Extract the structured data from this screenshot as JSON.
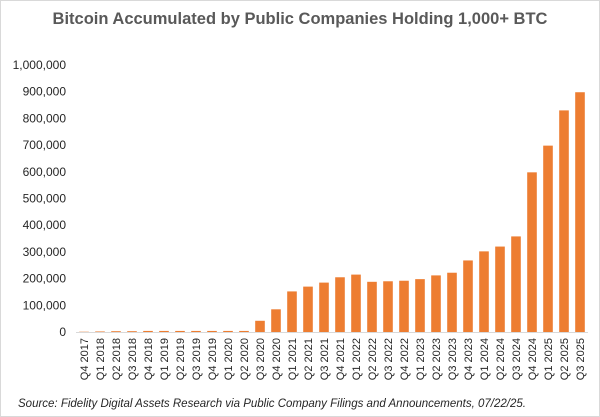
{
  "chart_data": {
    "type": "bar",
    "title": "Bitcoin Accumulated by Public Companies Holding 1,000+ BTC",
    "xlabel": "",
    "ylabel": "",
    "ylim": [
      0,
      1000000
    ],
    "yticks": [
      "0",
      "100,000",
      "200,000",
      "300,000",
      "400,000",
      "500,000",
      "600,000",
      "700,000",
      "800,000",
      "900,000",
      "1,000,000"
    ],
    "grid": false,
    "legend": "none",
    "bar_color": "#ed7d31",
    "categories": [
      "Q4 2017",
      "Q1 2018",
      "Q2 2018",
      "Q3 2018",
      "Q4 2018",
      "Q1 2019",
      "Q2 2019",
      "Q3 2019",
      "Q4 2019",
      "Q1 2020",
      "Q2 2020",
      "Q3 2020",
      "Q4 2020",
      "Q1 2021",
      "Q2 2021",
      "Q3 2021",
      "Q4 2021",
      "Q1 2022",
      "Q2 2022",
      "Q3 2022",
      "Q4 2022",
      "Q1 2023",
      "Q2 2023",
      "Q3 2023",
      "Q4 2023",
      "Q1 2024",
      "Q2 2024",
      "Q3 2024",
      "Q4 2024",
      "Q1 2025",
      "Q2 2025",
      "Q3 2025"
    ],
    "values": [
      1000,
      2000,
      3000,
      3000,
      4000,
      4000,
      4000,
      4000,
      4000,
      4000,
      4000,
      42000,
      85000,
      152000,
      170000,
      185000,
      205000,
      215000,
      188000,
      190000,
      192000,
      198000,
      212000,
      222000,
      268000,
      302000,
      320000,
      358000,
      598000,
      698000,
      830000,
      898000
    ]
  },
  "source": "Source: Fidelity Digital Assets Research via Public Company Filings and Announcements, 07/22/25."
}
